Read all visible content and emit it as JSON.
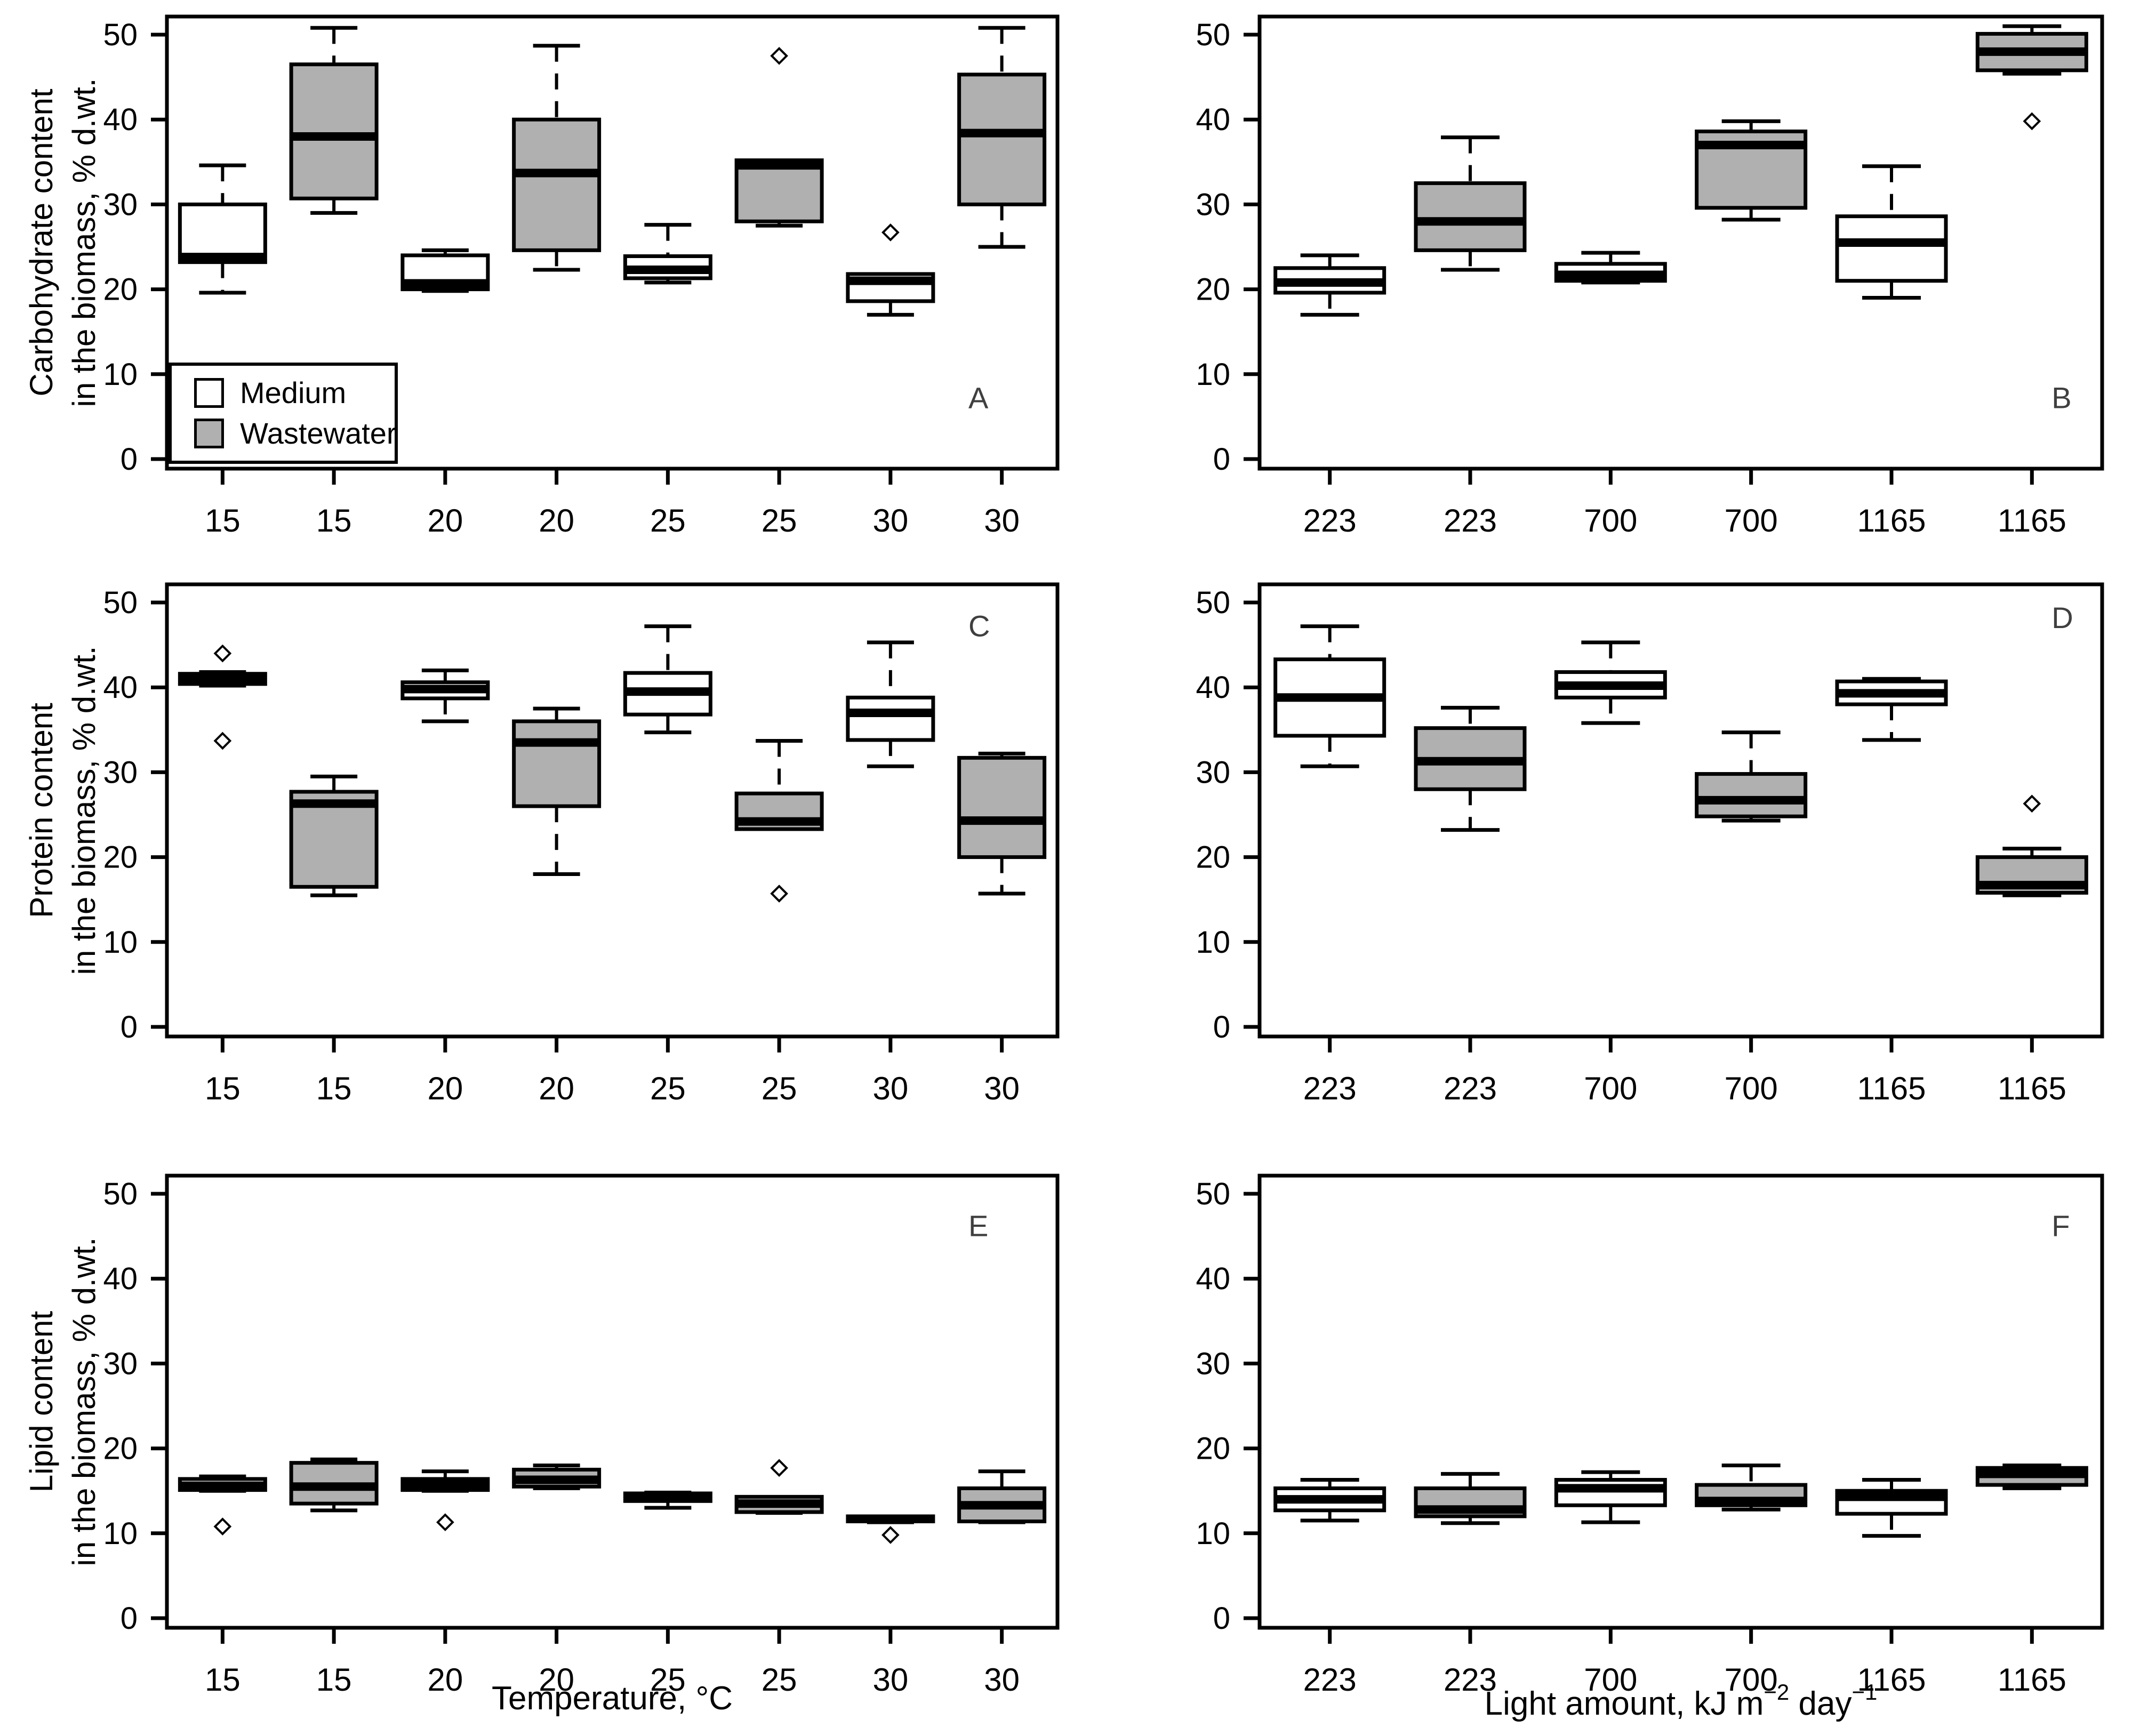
{
  "figure": {
    "background": "#ffffff",
    "colors": {
      "medium_fill": "#ffffff",
      "wastewater_fill": "#b0b0b0",
      "line": "#000000",
      "text": "#000000",
      "panel_letter": "#3f3f3f"
    },
    "legend": {
      "items": [
        {
          "label": "Medium",
          "fill_key": "medium"
        },
        {
          "label": "Wastewater",
          "fill_key": "wastewater"
        }
      ]
    },
    "y_ticks": [
      0,
      10,
      20,
      30,
      40,
      50
    ],
    "axes": {
      "ylim": [
        0,
        50
      ],
      "xlabel_left": "Temperature, °C",
      "xlabel_right": {
        "pre": "Light amount, kJ m",
        "sup1": "−2",
        "mid": " day",
        "sup2": "−1"
      }
    }
  },
  "chart_data": [
    {
      "type": "boxplot",
      "panel": "A",
      "row": 0,
      "col": 0,
      "letter": "A",
      "letter_value": 6,
      "title": "",
      "ylabel1": "Carbohydrate content",
      "ylabel2": "in the biomass, % d.wt.",
      "xlabel": "Temperature, °C",
      "ylim": [
        0,
        50
      ],
      "grid": false,
      "categories": [
        "15",
        "15",
        "20",
        "20",
        "25",
        "25",
        "30",
        "30"
      ],
      "boxes": [
        {
          "label": "15",
          "series": "Medium",
          "lo": 19.6,
          "q1": 23.2,
          "med": 23.8,
          "q3": 30.0,
          "hi": 34.6,
          "out": []
        },
        {
          "label": "15",
          "series": "Wastewater",
          "lo": 29.0,
          "q1": 30.7,
          "med": 38.0,
          "q3": 46.5,
          "hi": 50.8,
          "out": []
        },
        {
          "label": "20",
          "series": "Medium",
          "lo": 19.8,
          "q1": 20.0,
          "med": 20.7,
          "q3": 24.0,
          "hi": 24.6,
          "out": []
        },
        {
          "label": "20",
          "series": "Wastewater",
          "lo": 22.3,
          "q1": 24.6,
          "med": 33.7,
          "q3": 40.0,
          "hi": 48.7,
          "out": []
        },
        {
          "label": "25",
          "series": "Medium",
          "lo": 20.8,
          "q1": 21.3,
          "med": 22.3,
          "q3": 23.9,
          "hi": 27.6,
          "out": []
        },
        {
          "label": "25",
          "series": "Wastewater",
          "lo": 27.5,
          "q1": 28.0,
          "med": 34.6,
          "q3": 35.2,
          "hi": 35.2,
          "out": [
            47.5
          ]
        },
        {
          "label": "30",
          "series": "Medium",
          "lo": 17.0,
          "q1": 18.6,
          "med": 21.0,
          "q3": 21.8,
          "hi": 21.8,
          "out": [
            26.7
          ]
        },
        {
          "label": "30",
          "series": "Wastewater",
          "lo": 25.0,
          "q1": 30.0,
          "med": 38.4,
          "q3": 45.3,
          "hi": 50.8,
          "out": []
        }
      ]
    },
    {
      "type": "boxplot",
      "panel": "B",
      "row": 0,
      "col": 1,
      "letter": "B",
      "letter_value": 6,
      "title": "",
      "ylabel1": "Carbohydrate content",
      "ylabel2": "in the biomass, % d.wt.",
      "xlabel": "Light amount, kJ m−2 day−1",
      "ylim": [
        0,
        50
      ],
      "grid": false,
      "categories": [
        "223",
        "223",
        "700",
        "700",
        "1165",
        "1165"
      ],
      "boxes": [
        {
          "label": "223",
          "series": "Medium",
          "lo": 17.0,
          "q1": 19.6,
          "med": 20.8,
          "q3": 22.5,
          "hi": 24.0,
          "out": []
        },
        {
          "label": "223",
          "series": "Wastewater",
          "lo": 22.3,
          "q1": 24.6,
          "med": 28.0,
          "q3": 32.5,
          "hi": 37.9,
          "out": []
        },
        {
          "label": "700",
          "series": "Medium",
          "lo": 20.8,
          "q1": 21.0,
          "med": 21.7,
          "q3": 23.0,
          "hi": 24.3,
          "out": []
        },
        {
          "label": "700",
          "series": "Wastewater",
          "lo": 28.2,
          "q1": 29.6,
          "med": 37.0,
          "q3": 38.6,
          "hi": 39.8,
          "out": []
        },
        {
          "label": "1165",
          "series": "Medium",
          "lo": 19.0,
          "q1": 21.0,
          "med": 25.5,
          "q3": 28.6,
          "hi": 34.5,
          "out": []
        },
        {
          "label": "1165",
          "series": "Wastewater",
          "lo": 45.4,
          "q1": 45.8,
          "med": 48.0,
          "q3": 50.1,
          "hi": 51.0,
          "out": [
            39.8
          ]
        }
      ]
    },
    {
      "type": "boxplot",
      "panel": "C",
      "row": 1,
      "col": 0,
      "letter": "C",
      "letter_value": 46,
      "title": "",
      "ylabel1": "Protein content",
      "ylabel2": "in the biomass, % d.wt.",
      "xlabel": "Temperature, °C",
      "ylim": [
        0,
        50
      ],
      "grid": false,
      "categories": [
        "15",
        "15",
        "20",
        "20",
        "25",
        "25",
        "30",
        "30"
      ],
      "boxes": [
        {
          "label": "15",
          "series": "Medium",
          "lo": 40.2,
          "q1": 40.4,
          "med": 41.0,
          "q3": 41.6,
          "hi": 41.8,
          "out": [
            44.0,
            33.7
          ]
        },
        {
          "label": "15",
          "series": "Wastewater",
          "lo": 15.5,
          "q1": 16.5,
          "med": 26.3,
          "q3": 27.7,
          "hi": 29.5,
          "out": []
        },
        {
          "label": "20",
          "series": "Medium",
          "lo": 36.0,
          "q1": 38.7,
          "med": 39.8,
          "q3": 40.6,
          "hi": 42.0,
          "out": []
        },
        {
          "label": "20",
          "series": "Wastewater",
          "lo": 18.0,
          "q1": 26.0,
          "med": 33.5,
          "q3": 36.0,
          "hi": 37.5,
          "out": []
        },
        {
          "label": "25",
          "series": "Medium",
          "lo": 34.7,
          "q1": 36.8,
          "med": 39.5,
          "q3": 41.7,
          "hi": 47.2,
          "out": []
        },
        {
          "label": "25",
          "series": "Wastewater",
          "lo": 23.3,
          "q1": 23.3,
          "med": 24.2,
          "q3": 27.5,
          "hi": 33.7,
          "out": [
            15.7
          ]
        },
        {
          "label": "30",
          "series": "Medium",
          "lo": 30.7,
          "q1": 33.8,
          "med": 37.0,
          "q3": 38.8,
          "hi": 45.3,
          "out": []
        },
        {
          "label": "30",
          "series": "Wastewater",
          "lo": 15.7,
          "q1": 20.0,
          "med": 24.3,
          "q3": 31.7,
          "hi": 32.2,
          "out": []
        }
      ]
    },
    {
      "type": "boxplot",
      "panel": "D",
      "row": 1,
      "col": 1,
      "letter": "D",
      "letter_value": 47,
      "title": "",
      "ylabel1": "Protein content",
      "ylabel2": "in the biomass, % d.wt.",
      "xlabel": "Light amount, kJ m−2 day−1",
      "ylim": [
        0,
        50
      ],
      "grid": false,
      "categories": [
        "223",
        "223",
        "700",
        "700",
        "1165",
        "1165"
      ],
      "boxes": [
        {
          "label": "223",
          "series": "Medium",
          "lo": 30.7,
          "q1": 34.3,
          "med": 38.8,
          "q3": 43.3,
          "hi": 47.2,
          "out": []
        },
        {
          "label": "223",
          "series": "Wastewater",
          "lo": 23.2,
          "q1": 28.0,
          "med": 31.3,
          "q3": 35.2,
          "hi": 37.6,
          "out": []
        },
        {
          "label": "700",
          "series": "Medium",
          "lo": 35.8,
          "q1": 38.8,
          "med": 40.2,
          "q3": 41.8,
          "hi": 45.3,
          "out": []
        },
        {
          "label": "700",
          "series": "Wastewater",
          "lo": 24.3,
          "q1": 24.8,
          "med": 26.7,
          "q3": 29.8,
          "hi": 34.7,
          "out": []
        },
        {
          "label": "1165",
          "series": "Medium",
          "lo": 33.8,
          "q1": 38.0,
          "med": 39.3,
          "q3": 40.7,
          "hi": 41.0,
          "out": []
        },
        {
          "label": "1165",
          "series": "Wastewater",
          "lo": 15.5,
          "q1": 15.8,
          "med": 16.7,
          "q3": 20.0,
          "hi": 21.0,
          "out": [
            26.3
          ]
        }
      ]
    },
    {
      "type": "boxplot",
      "panel": "E",
      "row": 2,
      "col": 0,
      "letter": "E",
      "letter_value": 45,
      "title": "",
      "ylabel1": "Lipid content",
      "ylabel2": "in the biomass, % d.wt.",
      "xlabel": "Temperature, °C",
      "ylim": [
        0,
        50
      ],
      "grid": false,
      "categories": [
        "15",
        "15",
        "20",
        "20",
        "25",
        "25",
        "30",
        "30"
      ],
      "boxes": [
        {
          "label": "15",
          "series": "Medium",
          "lo": 15.0,
          "q1": 15.1,
          "med": 15.6,
          "q3": 16.4,
          "hi": 16.7,
          "out": [
            10.8
          ]
        },
        {
          "label": "15",
          "series": "Wastewater",
          "lo": 12.7,
          "q1": 13.5,
          "med": 15.5,
          "q3": 18.3,
          "hi": 18.7,
          "out": []
        },
        {
          "label": "20",
          "series": "Medium",
          "lo": 15.0,
          "q1": 15.1,
          "med": 15.8,
          "q3": 16.4,
          "hi": 17.3,
          "out": [
            11.3
          ]
        },
        {
          "label": "20",
          "series": "Wastewater",
          "lo": 15.3,
          "q1": 15.5,
          "med": 16.3,
          "q3": 17.5,
          "hi": 18.0,
          "out": []
        },
        {
          "label": "25",
          "series": "Medium",
          "lo": 13.0,
          "q1": 13.8,
          "med": 14.3,
          "q3": 14.7,
          "hi": 14.8,
          "out": []
        },
        {
          "label": "25",
          "series": "Wastewater",
          "lo": 12.4,
          "q1": 12.5,
          "med": 13.5,
          "q3": 14.3,
          "hi": 14.3,
          "out": [
            17.7
          ]
        },
        {
          "label": "30",
          "series": "Medium",
          "lo": 11.3,
          "q1": 11.4,
          "med": 11.7,
          "q3": 12.0,
          "hi": 12.0,
          "out": [
            9.8
          ]
        },
        {
          "label": "30",
          "series": "Wastewater",
          "lo": 11.3,
          "q1": 11.4,
          "med": 13.3,
          "q3": 15.3,
          "hi": 17.3,
          "out": []
        }
      ]
    },
    {
      "type": "boxplot",
      "panel": "F",
      "row": 2,
      "col": 1,
      "letter": "F",
      "letter_value": 45,
      "title": "",
      "ylabel1": "Lipid content",
      "ylabel2": "in the biomass, % d.wt.",
      "xlabel": "Light amount, kJ m−2 day−1",
      "ylim": [
        0,
        50
      ],
      "grid": false,
      "categories": [
        "223",
        "223",
        "700",
        "700",
        "1165",
        "1165"
      ],
      "boxes": [
        {
          "label": "223",
          "series": "Medium",
          "lo": 11.5,
          "q1": 12.7,
          "med": 14.0,
          "q3": 15.3,
          "hi": 16.3,
          "out": []
        },
        {
          "label": "223",
          "series": "Wastewater",
          "lo": 11.2,
          "q1": 12.0,
          "med": 12.8,
          "q3": 15.3,
          "hi": 17.0,
          "out": []
        },
        {
          "label": "700",
          "series": "Medium",
          "lo": 11.3,
          "q1": 13.3,
          "med": 15.3,
          "q3": 16.3,
          "hi": 17.2,
          "out": []
        },
        {
          "label": "700",
          "series": "Wastewater",
          "lo": 12.8,
          "q1": 13.3,
          "med": 13.8,
          "q3": 15.7,
          "hi": 18.0,
          "out": []
        },
        {
          "label": "1165",
          "series": "Medium",
          "lo": 9.7,
          "q1": 12.3,
          "med": 14.3,
          "q3": 15.0,
          "hi": 16.3,
          "out": []
        },
        {
          "label": "1165",
          "series": "Wastewater",
          "lo": 15.3,
          "q1": 15.7,
          "med": 17.0,
          "q3": 17.7,
          "hi": 18.0,
          "out": []
        }
      ]
    }
  ]
}
